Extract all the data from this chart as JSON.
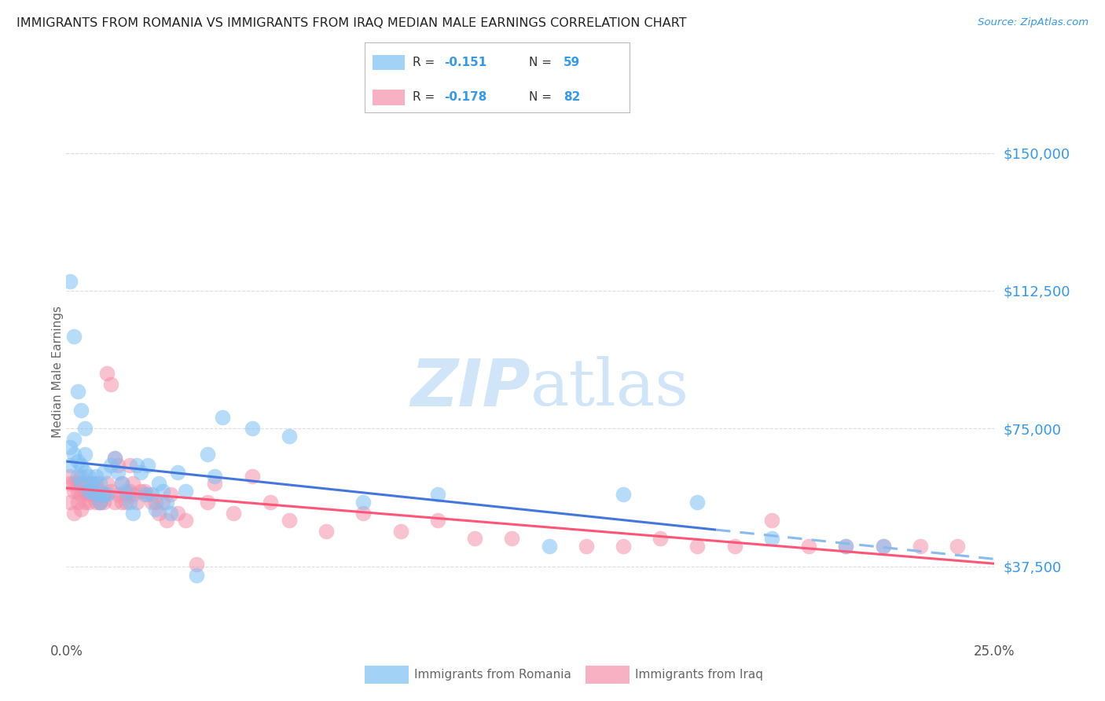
{
  "title": "IMMIGRANTS FROM ROMANIA VS IMMIGRANTS FROM IRAQ MEDIAN MALE EARNINGS CORRELATION CHART",
  "source": "Source: ZipAtlas.com",
  "ylabel": "Median Male Earnings",
  "ytick_labels": [
    "$37,500",
    "$75,000",
    "$112,500",
    "$150,000"
  ],
  "ytick_values": [
    37500,
    75000,
    112500,
    150000
  ],
  "ylim": [
    18000,
    163000
  ],
  "xlim": [
    0.0,
    0.25
  ],
  "romania_color": "#7DC0F5",
  "iraq_color": "#F590AA",
  "trendline_romania_color": "#4477DD",
  "trendline_iraq_color": "#FF5577",
  "trendline_dashed_color": "#88BBEE",
  "watermark_color": "#D0E5F8",
  "title_color": "#222222",
  "axis_label_color": "#666666",
  "ytick_color": "#3399EE",
  "xtick_color": "#555555",
  "grid_color": "#DDDDDD",
  "background_color": "#FFFFFF",
  "romania_x": [
    0.001,
    0.001,
    0.002,
    0.002,
    0.003,
    0.003,
    0.004,
    0.004,
    0.005,
    0.005,
    0.006,
    0.006,
    0.007,
    0.007,
    0.008,
    0.008,
    0.009,
    0.009,
    0.01,
    0.01,
    0.011,
    0.012,
    0.013,
    0.014,
    0.015,
    0.016,
    0.017,
    0.018,
    0.019,
    0.02,
    0.021,
    0.022,
    0.023,
    0.024,
    0.025,
    0.026,
    0.027,
    0.028,
    0.03,
    0.032,
    0.035,
    0.038,
    0.04,
    0.042,
    0.05,
    0.06,
    0.08,
    0.1,
    0.13,
    0.15,
    0.17,
    0.19,
    0.21,
    0.22,
    0.001,
    0.002,
    0.003,
    0.004,
    0.005
  ],
  "romania_y": [
    65000,
    70000,
    68000,
    72000,
    66000,
    62000,
    65000,
    60000,
    68000,
    63000,
    58000,
    62000,
    60000,
    58000,
    57000,
    62000,
    55000,
    60000,
    57000,
    63000,
    57000,
    65000,
    67000,
    63000,
    60000,
    58000,
    55000,
    52000,
    65000,
    63000,
    57000,
    65000,
    57000,
    53000,
    60000,
    58000,
    55000,
    52000,
    63000,
    58000,
    35000,
    68000,
    62000,
    78000,
    75000,
    73000,
    55000,
    57000,
    43000,
    57000,
    55000,
    45000,
    43000,
    43000,
    115000,
    100000,
    85000,
    80000,
    75000
  ],
  "iraq_x": [
    0.001,
    0.001,
    0.002,
    0.002,
    0.003,
    0.003,
    0.004,
    0.004,
    0.005,
    0.005,
    0.006,
    0.006,
    0.007,
    0.007,
    0.008,
    0.008,
    0.009,
    0.009,
    0.01,
    0.01,
    0.011,
    0.012,
    0.013,
    0.014,
    0.015,
    0.016,
    0.017,
    0.018,
    0.019,
    0.02,
    0.021,
    0.022,
    0.023,
    0.024,
    0.025,
    0.026,
    0.027,
    0.028,
    0.03,
    0.032,
    0.035,
    0.038,
    0.04,
    0.045,
    0.05,
    0.055,
    0.06,
    0.07,
    0.08,
    0.09,
    0.1,
    0.11,
    0.12,
    0.14,
    0.15,
    0.16,
    0.17,
    0.18,
    0.19,
    0.2,
    0.21,
    0.22,
    0.23,
    0.24,
    0.001,
    0.002,
    0.003,
    0.004,
    0.005,
    0.006,
    0.007,
    0.008,
    0.009,
    0.01,
    0.011,
    0.012,
    0.013,
    0.014,
    0.015,
    0.016,
    0.017,
    0.018
  ],
  "iraq_y": [
    60000,
    55000,
    58000,
    52000,
    55000,
    60000,
    57000,
    53000,
    58000,
    60000,
    57000,
    55000,
    58000,
    57000,
    55000,
    60000,
    55000,
    58000,
    57000,
    55000,
    90000,
    87000,
    67000,
    65000,
    55000,
    57000,
    65000,
    60000,
    55000,
    58000,
    58000,
    57000,
    55000,
    55000,
    52000,
    55000,
    50000,
    57000,
    52000,
    50000,
    38000,
    55000,
    60000,
    52000,
    62000,
    55000,
    50000,
    47000,
    52000,
    47000,
    50000,
    45000,
    45000,
    43000,
    43000,
    45000,
    43000,
    43000,
    50000,
    43000,
    43000,
    43000,
    43000,
    43000,
    62000,
    60000,
    58000,
    62000,
    55000,
    58000,
    60000,
    57000,
    55000,
    57000,
    60000,
    58000,
    55000,
    57000,
    60000,
    55000,
    58000,
    57000
  ]
}
